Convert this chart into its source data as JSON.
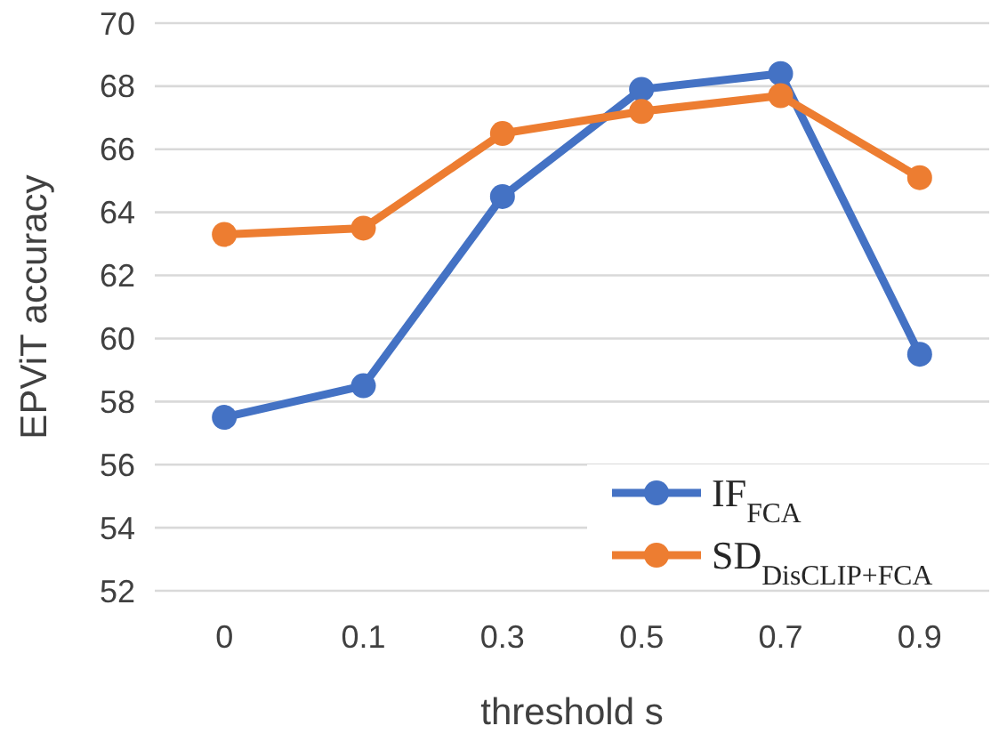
{
  "chart_data": {
    "type": "line",
    "xlabel": "threshold s",
    "ylabel": "EPViT accuracy",
    "categories": [
      "0",
      "0.1",
      "0.3",
      "0.5",
      "0.7",
      "0.9"
    ],
    "series": [
      {
        "name": "IF$_{FCA}$",
        "color": "#4472c4",
        "values": [
          57.5,
          58.5,
          64.5,
          67.9,
          68.4,
          59.5
        ]
      },
      {
        "name": "SD$_{DisCLIP+FCA}$",
        "color": "#ed7d31",
        "values": [
          63.3,
          63.5,
          66.5,
          67.2,
          67.7,
          65.1
        ]
      }
    ],
    "ylim": [
      52,
      70
    ],
    "yticks": [
      52,
      54,
      56,
      58,
      60,
      62,
      64,
      66,
      68,
      70
    ],
    "grid": "y",
    "legend": "bottom right",
    "marker": "circle",
    "line_style": "solid"
  }
}
